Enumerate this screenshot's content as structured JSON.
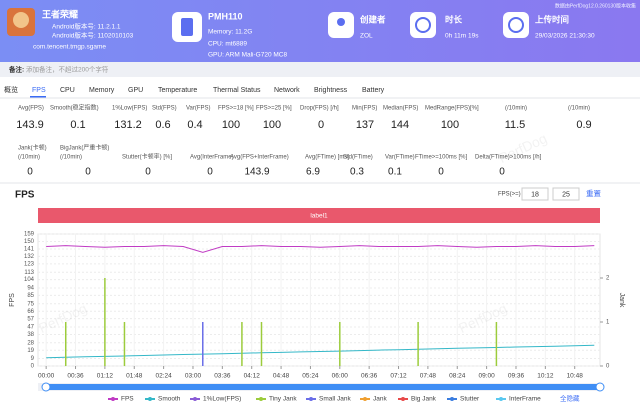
{
  "header": {
    "app_name": "王者荣耀",
    "app_version": "Android版本号: 11.2.1.1",
    "app_build": "Android版本号: 1102010103",
    "package": "com.tencent.tmgp.sgame",
    "device": "PMH110",
    "memory": "Memory: 11.2G",
    "cpu": "CPU: mt6889",
    "gpu": "GPU: ARM Mali-G720 MC8",
    "creator_label": "创建者",
    "creator": "ZOL",
    "duration_label": "时长",
    "duration": "0h 11m 19s",
    "upload_label": "上传时间",
    "upload_time": "29/03/2026 21:30:30",
    "collector": "数据由PerfDog12.0.260130版本收集"
  },
  "remark": {
    "label": "备注:",
    "placeholder": "添加备注，不超过200个字符"
  },
  "tabs": [
    "概览",
    "FPS",
    "CPU",
    "Memory",
    "GPU",
    "Temperature",
    "Thermal Status",
    "Network",
    "Brightness",
    "Battery"
  ],
  "active_tab": "FPS",
  "stats": {
    "rows": [
      {
        "headers": [
          [
            "Avg(FPS)"
          ],
          [
            "Smooth(稳定指数)"
          ],
          [
            "1%Low(FPS)"
          ],
          [
            "Std(FPS)"
          ],
          [
            "Var(FPS)"
          ],
          [
            "FPS>=18 [%]"
          ],
          [
            "FPS>=25 [%]"
          ],
          [
            "Drop(FPS) [/h]"
          ],
          [
            "Min(FPS)"
          ],
          [
            "Median(FPS)"
          ],
          [
            "MedRange(FPS)[%]"
          ],
          [
            "(/10min)"
          ],
          [
            "(/10min)"
          ]
        ],
        "values": [
          143.9,
          0.1,
          131.2,
          0.6,
          0.4,
          100,
          100,
          0,
          137,
          144,
          100,
          11.5,
          0.9
        ]
      },
      {
        "headers": [
          [
            "Jank(卡顿)",
            "(/10min)"
          ],
          [
            "BigJank(严重卡顿)",
            "(/10min)"
          ],
          [
            "Stutter(卡顿率) [%]"
          ],
          [
            "Avg(InterFrame)"
          ],
          [
            "Avg(FPS+InterFrame)"
          ],
          [
            "Avg(FTime) [ms]"
          ],
          [
            "Std(FTime)"
          ],
          [
            "Var(FTime)"
          ],
          [
            "FTime>=100ms [%]"
          ],
          [
            "Delta(FTime)>100ms [/h]"
          ]
        ],
        "values": [
          0,
          0,
          0,
          0,
          143.9,
          6.9,
          0.3,
          0.1,
          0,
          0
        ]
      }
    ]
  },
  "watermark": "PerfDog",
  "fps_threshold": {
    "label": "FPS(>=)",
    "values": [
      18,
      25
    ],
    "reset": "重置"
  },
  "legend_action": "全隐藏",
  "chart_data": {
    "type": "line",
    "title": "FPS",
    "annotation": "label1",
    "y_label": "FPS",
    "y2_label": "Jank",
    "x": [
      0,
      24,
      48,
      72,
      96,
      120,
      144,
      168,
      192,
      216,
      240,
      264,
      288,
      312,
      336,
      360,
      384,
      408,
      432,
      456,
      480,
      504,
      528,
      552,
      576,
      600,
      624,
      648,
      672
    ],
    "xlim": [
      -10,
      679
    ],
    "xticks": [
      {
        "value": 0,
        "label": "00:00"
      },
      {
        "value": 36,
        "label": "00:36"
      },
      {
        "value": 72,
        "label": "01:12"
      },
      {
        "value": 108,
        "label": "01:48"
      },
      {
        "value": 144,
        "label": "02:24"
      },
      {
        "value": 180,
        "label": "03:00"
      },
      {
        "value": 216,
        "label": "03:36"
      },
      {
        "value": 252,
        "label": "04:12"
      },
      {
        "value": 288,
        "label": "04:48"
      },
      {
        "value": 324,
        "label": "05:24"
      },
      {
        "value": 360,
        "label": "06:00"
      },
      {
        "value": 396,
        "label": "06:36"
      },
      {
        "value": 432,
        "label": "07:12"
      },
      {
        "value": 468,
        "label": "07:48"
      },
      {
        "value": 504,
        "label": "08:24"
      },
      {
        "value": 540,
        "label": "09:00"
      },
      {
        "value": 576,
        "label": "09:36"
      },
      {
        "value": 612,
        "label": "10:12"
      },
      {
        "value": 648,
        "label": "10:48"
      }
    ],
    "ylim": [
      0,
      159
    ],
    "yticks": [
      0,
      9,
      19,
      28,
      38,
      47,
      57,
      66,
      75,
      85,
      94,
      104,
      113,
      123,
      132,
      141,
      150,
      159
    ],
    "y2lim": [
      0,
      3
    ],
    "y2ticks": [
      0,
      1,
      2
    ],
    "grid": true,
    "series": [
      {
        "name": "FPS",
        "color": "#c03bc4",
        "values": [
          144,
          145,
          144,
          143,
          144,
          144,
          145,
          144,
          137,
          144,
          144,
          145,
          144,
          144,
          143,
          144,
          145,
          144,
          144,
          144,
          145,
          144,
          143,
          144,
          144,
          145,
          144,
          144,
          145
        ]
      },
      {
        "name": "Smooth",
        "color": "#35b8c8",
        "values": [
          10,
          10.5,
          11.1,
          11.6,
          12.1,
          12.7,
          13.2,
          13.8,
          14.3,
          14.8,
          15.4,
          15.9,
          16.4,
          17,
          17.5,
          18,
          18.6,
          19.1,
          19.6,
          20.2,
          20.7,
          21.3,
          21.8,
          22.3,
          22.9,
          23.4,
          23.9,
          24.5,
          25
        ]
      },
      {
        "name": "1%Low(FPS)",
        "color": "#8a5cd6",
        "values": [
          null,
          null,
          null,
          null,
          null,
          null,
          null,
          null,
          null,
          null,
          null,
          null,
          null,
          null,
          null,
          null,
          null,
          null,
          null,
          null,
          null,
          null,
          null,
          null,
          null,
          null,
          null,
          null,
          null
        ]
      },
      {
        "name": "Tiny Jank",
        "color": "#9ccc3c",
        "axis": "y2",
        "type": "bar",
        "values": [
          0,
          1,
          0,
          2,
          1,
          0,
          0,
          0,
          0,
          0,
          1,
          1,
          0,
          0,
          0,
          1,
          0,
          0,
          0,
          1,
          0,
          0,
          0,
          1,
          0,
          0,
          0,
          0,
          0
        ]
      },
      {
        "name": "Small Jank",
        "color": "#6a6ee8",
        "axis": "y2",
        "type": "bar",
        "values": [
          0,
          0,
          0,
          0,
          0,
          0,
          0,
          0,
          1,
          0,
          0,
          0,
          0,
          0,
          0,
          0,
          0,
          0,
          0,
          0,
          0,
          0,
          0,
          0,
          0,
          0,
          0,
          0,
          0
        ]
      },
      {
        "name": "Jank",
        "color": "#f0a030",
        "axis": "y2",
        "type": "bar",
        "values": [
          0,
          0,
          0,
          0,
          0,
          0,
          0,
          0,
          0,
          0,
          0,
          0,
          0,
          0,
          0,
          0,
          0,
          0,
          0,
          0,
          0,
          0,
          0,
          0,
          0,
          0,
          0,
          0,
          0
        ]
      },
      {
        "name": "Big Jank",
        "color": "#e84a4a",
        "axis": "y2",
        "type": "bar",
        "values": [
          0,
          0,
          0,
          0,
          0,
          0,
          0,
          0,
          0,
          0,
          0,
          0,
          0,
          0,
          0,
          0,
          0,
          0,
          0,
          0,
          0,
          0,
          0,
          0,
          0,
          0,
          0,
          0,
          0
        ]
      },
      {
        "name": "Stutter",
        "color": "#3a7de0",
        "axis": "y2",
        "type": "bar",
        "values": [
          0,
          0,
          0,
          0,
          0,
          0,
          0,
          0,
          0,
          0,
          0,
          0,
          0,
          0,
          0,
          0,
          0,
          0,
          0,
          0,
          0,
          0,
          0,
          0,
          0,
          0,
          0,
          0,
          0
        ]
      },
      {
        "name": "InterFrame",
        "color": "#5ac8f0",
        "axis": "y2",
        "type": "bar",
        "values": [
          0,
          0,
          0,
          0,
          0,
          0,
          0,
          0,
          0,
          0,
          0,
          0,
          0,
          0,
          0,
          0,
          0,
          0,
          0,
          0,
          0,
          0,
          0,
          0,
          0,
          0,
          0,
          0,
          0
        ]
      }
    ]
  }
}
